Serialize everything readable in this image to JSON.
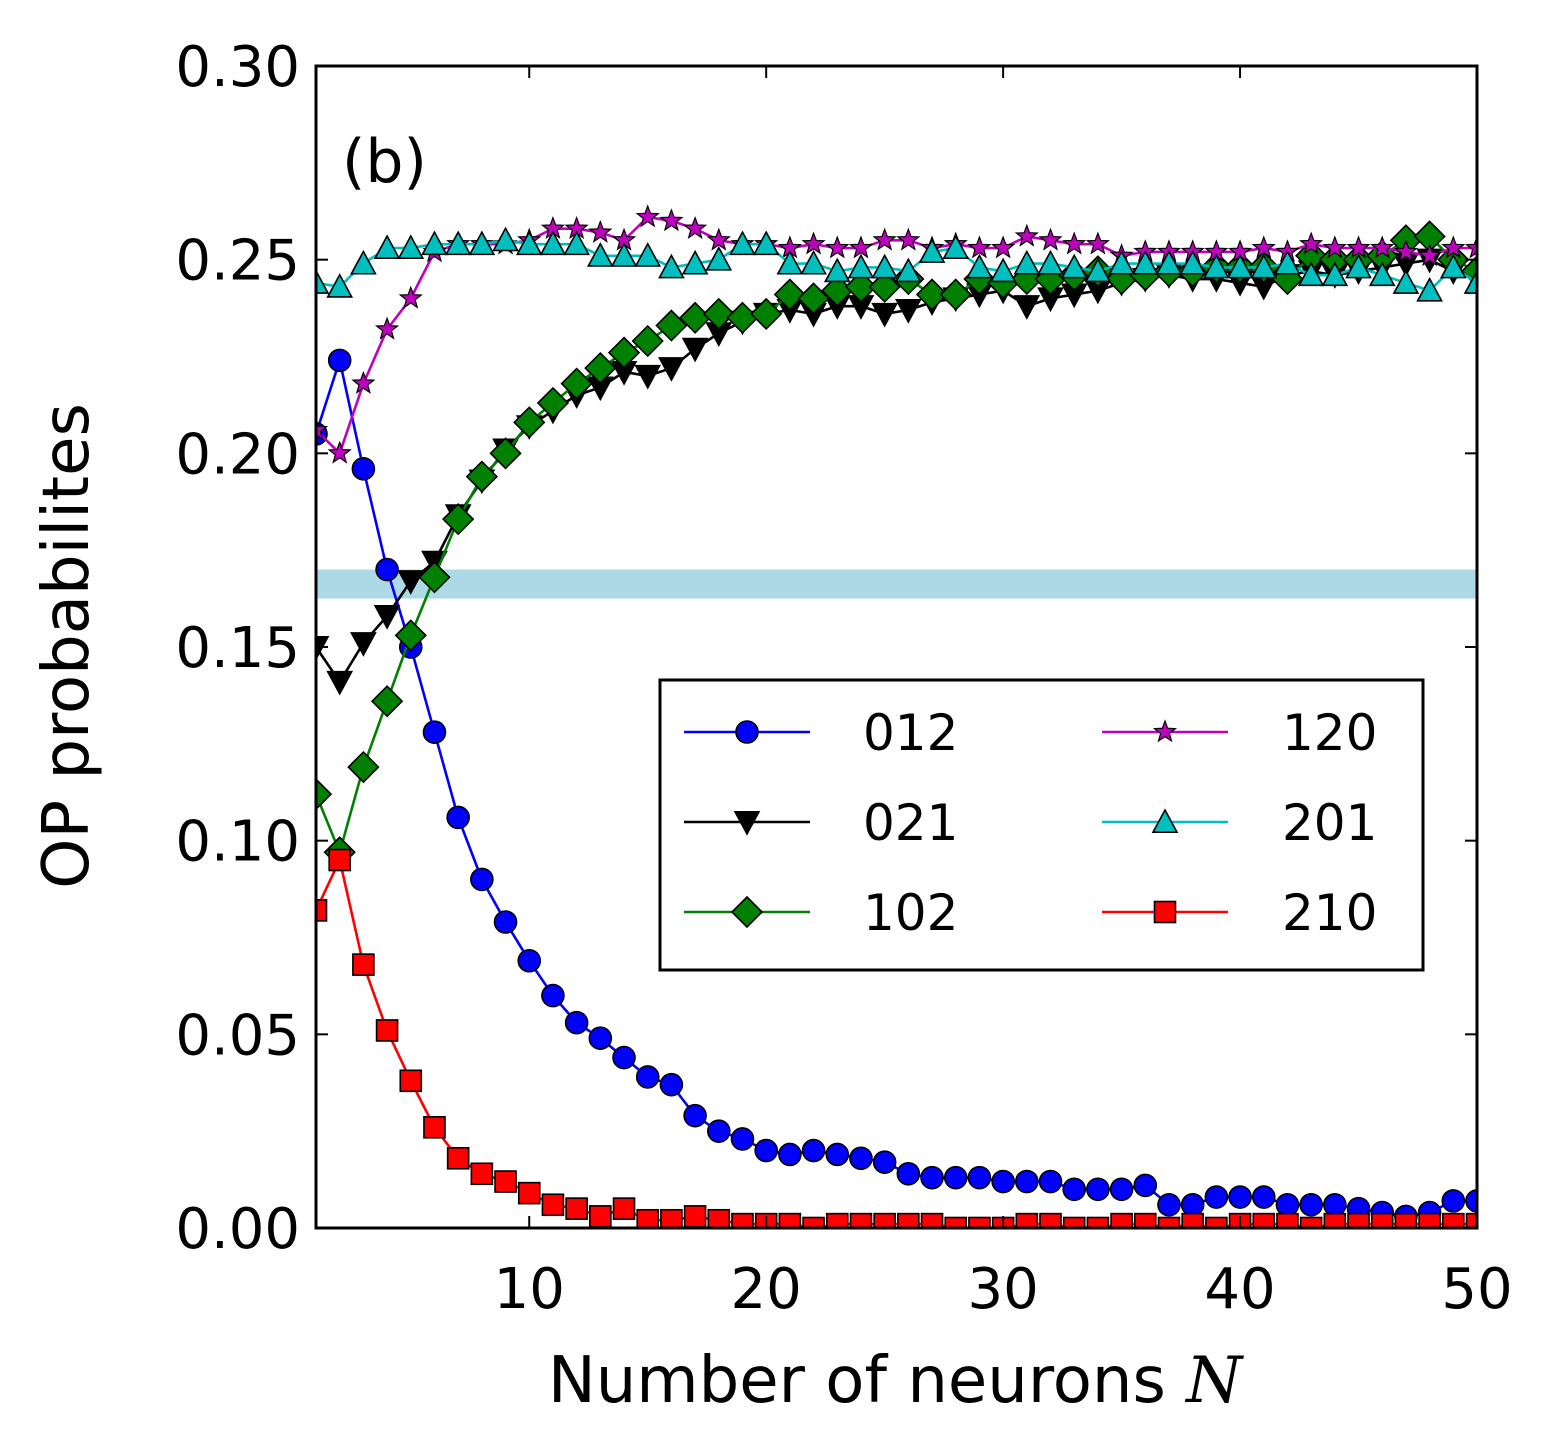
{
  "chart_data": {
    "type": "line",
    "panel_label": "(b)",
    "xlabel": "Number of neurons",
    "xlabel_symbol": "N",
    "ylabel": "OP probabilites",
    "xlim": [
      1,
      50
    ],
    "ylim": [
      0.0,
      0.3
    ],
    "xticks": [
      10,
      20,
      30,
      40,
      50
    ],
    "xtick_labels": [
      "10",
      "20",
      "30",
      "40",
      "50"
    ],
    "yticks": [
      0.0,
      0.05,
      0.1,
      0.15,
      0.2,
      0.25,
      0.3
    ],
    "ytick_labels": [
      "0.00",
      "0.05",
      "0.10",
      "0.15",
      "0.20",
      "0.25",
      "0.30"
    ],
    "reference_band": {
      "y0": 0.1625,
      "y1": 0.17,
      "color": "#add8e6"
    },
    "legend_position": "center-right",
    "x": [
      1,
      2,
      3,
      4,
      5,
      6,
      7,
      8,
      9,
      10,
      11,
      12,
      13,
      14,
      15,
      16,
      17,
      18,
      19,
      20,
      21,
      22,
      23,
      24,
      25,
      26,
      27,
      28,
      29,
      30,
      31,
      32,
      33,
      34,
      35,
      36,
      37,
      38,
      39,
      40,
      41,
      42,
      43,
      44,
      45,
      46,
      47,
      48,
      49,
      50
    ],
    "series": [
      {
        "name": "012",
        "color": "#0000ff",
        "marker": "circle",
        "values": [
          0.205,
          0.224,
          0.196,
          0.17,
          0.15,
          0.128,
          0.106,
          0.09,
          0.079,
          0.069,
          0.06,
          0.053,
          0.049,
          0.044,
          0.039,
          0.037,
          0.029,
          0.025,
          0.023,
          0.02,
          0.019,
          0.02,
          0.019,
          0.018,
          0.017,
          0.014,
          0.013,
          0.013,
          0.013,
          0.012,
          0.012,
          0.012,
          0.01,
          0.01,
          0.01,
          0.011,
          0.006,
          0.006,
          0.008,
          0.008,
          0.008,
          0.006,
          0.006,
          0.006,
          0.005,
          0.004,
          0.003,
          0.004,
          0.007,
          0.007
        ]
      },
      {
        "name": "021",
        "color": "#000000",
        "marker": "triangle-down",
        "values": [
          0.15,
          0.141,
          0.151,
          0.158,
          0.167,
          0.172,
          0.184,
          0.193,
          0.201,
          0.207,
          0.211,
          0.215,
          0.217,
          0.221,
          0.22,
          0.222,
          0.227,
          0.231,
          0.234,
          0.236,
          0.237,
          0.236,
          0.238,
          0.238,
          0.236,
          0.237,
          0.239,
          0.24,
          0.241,
          0.242,
          0.238,
          0.24,
          0.241,
          0.242,
          0.244,
          0.245,
          0.246,
          0.245,
          0.245,
          0.244,
          0.243,
          0.246,
          0.247,
          0.246,
          0.247,
          0.248,
          0.249,
          0.25,
          0.247,
          0.245
        ]
      },
      {
        "name": "102",
        "color": "#008000",
        "marker": "diamond",
        "values": [
          0.112,
          0.097,
          0.119,
          0.136,
          0.153,
          0.168,
          0.183,
          0.194,
          0.2,
          0.208,
          0.213,
          0.218,
          0.222,
          0.226,
          0.229,
          0.233,
          0.235,
          0.236,
          0.235,
          0.236,
          0.241,
          0.24,
          0.242,
          0.243,
          0.243,
          0.245,
          0.241,
          0.241,
          0.245,
          0.244,
          0.245,
          0.245,
          0.246,
          0.247,
          0.245,
          0.246,
          0.247,
          0.247,
          0.248,
          0.248,
          0.248,
          0.245,
          0.251,
          0.25,
          0.25,
          0.251,
          0.255,
          0.256,
          0.25,
          0.247
        ]
      },
      {
        "name": "120",
        "color": "#bf00bf",
        "marker": "star",
        "values": [
          0.206,
          0.2,
          0.218,
          0.232,
          0.24,
          0.252,
          0.254,
          0.254,
          0.254,
          0.255,
          0.258,
          0.258,
          0.257,
          0.255,
          0.261,
          0.26,
          0.258,
          0.255,
          0.254,
          0.254,
          0.253,
          0.254,
          0.253,
          0.253,
          0.255,
          0.255,
          0.253,
          0.254,
          0.253,
          0.253,
          0.256,
          0.255,
          0.254,
          0.254,
          0.251,
          0.252,
          0.252,
          0.252,
          0.252,
          0.252,
          0.253,
          0.252,
          0.254,
          0.253,
          0.253,
          0.253,
          0.252,
          0.251,
          0.253,
          0.253
        ]
      },
      {
        "name": "201",
        "color": "#00bfbf",
        "marker": "triangle-up",
        "values": [
          0.244,
          0.243,
          0.249,
          0.253,
          0.253,
          0.254,
          0.254,
          0.254,
          0.255,
          0.254,
          0.254,
          0.254,
          0.251,
          0.251,
          0.251,
          0.248,
          0.249,
          0.25,
          0.254,
          0.254,
          0.249,
          0.249,
          0.247,
          0.248,
          0.248,
          0.247,
          0.252,
          0.253,
          0.248,
          0.247,
          0.249,
          0.249,
          0.248,
          0.247,
          0.249,
          0.249,
          0.249,
          0.249,
          0.248,
          0.248,
          0.248,
          0.249,
          0.246,
          0.246,
          0.248,
          0.246,
          0.244,
          0.242,
          0.248,
          0.244
        ]
      },
      {
        "name": "210",
        "color": "#ff0000",
        "marker": "square",
        "values": [
          0.082,
          0.095,
          0.068,
          0.051,
          0.038,
          0.026,
          0.018,
          0.014,
          0.012,
          0.009,
          0.006,
          0.005,
          0.003,
          0.005,
          0.002,
          0.002,
          0.003,
          0.002,
          0.001,
          0.001,
          0.001,
          0.0,
          0.001,
          0.001,
          0.001,
          0.001,
          0.001,
          0.0,
          0.0,
          0.0,
          0.001,
          0.001,
          0.0,
          0.0,
          0.001,
          0.001,
          0.0,
          0.001,
          0.0,
          0.001,
          0.001,
          0.001,
          0.0,
          0.001,
          0.001,
          0.001,
          0.001,
          0.001,
          0.001,
          0.001
        ]
      }
    ],
    "legend_order": [
      "012",
      "021",
      "102",
      "120",
      "201",
      "210"
    ]
  }
}
